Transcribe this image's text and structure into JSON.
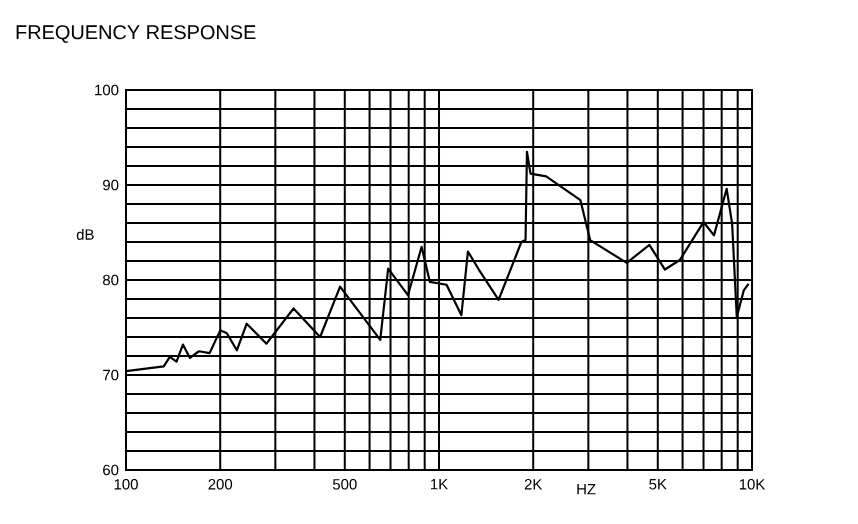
{
  "chart_data": {
    "type": "line",
    "title": "FREQUENCY RESPONSE",
    "xlabel": "HZ",
    "ylabel": "dB",
    "log": "x",
    "grid": true,
    "color": "#000000",
    "marker": "none",
    "line_style": "solid",
    "x": [
      100,
      132,
      138,
      145,
      152,
      160,
      171,
      185,
      200,
      210,
      226,
      243,
      281,
      343,
      417,
      483,
      649,
      688,
      796,
      880,
      935,
      1057,
      1179,
      1237,
      1340,
      1550,
      1833,
      1890,
      1910,
      1960,
      2200,
      2830,
      3040,
      3980,
      4700,
      5270,
      5880,
      7000,
      7560,
      8300,
      8640,
      8940,
      9410,
      9750
    ],
    "values": [
      70.4,
      70.9,
      71.9,
      71.4,
      73.2,
      71.8,
      72.5,
      72.3,
      74.7,
      74.4,
      72.6,
      75.4,
      73.3,
      77.0,
      74.0,
      79.3,
      73.7,
      81.2,
      78.4,
      83.5,
      79.8,
      79.5,
      76.3,
      83.0,
      81.1,
      77.9,
      84.0,
      84.2,
      93.5,
      91.2,
      90.9,
      88.4,
      84.2,
      81.8,
      83.7,
      81.1,
      82.1,
      86.1,
      84.7,
      89.6,
      85.9,
      76.1,
      78.9,
      79.6
    ],
    "xlim": [
      100,
      10000
    ],
    "ylim": [
      60,
      100
    ],
    "xticks": [
      100,
      200,
      {
        "value": 300,
        "label": null
      },
      {
        "value": 400,
        "label": null
      },
      500,
      {
        "value": 600,
        "label": null
      },
      {
        "value": 700,
        "label": null
      },
      {
        "value": 800,
        "label": null
      },
      {
        "value": 900,
        "label": null
      },
      {
        "value": 1000,
        "label": "1K"
      },
      {
        "value": 2000,
        "label": "2K"
      },
      {
        "value": 3000,
        "label": null
      },
      {
        "value": 4000,
        "label": null
      },
      {
        "value": 5000,
        "label": "5K"
      },
      {
        "value": 6000,
        "label": null
      },
      {
        "value": 7000,
        "label": null
      },
      {
        "value": 8000,
        "label": null
      },
      {
        "value": 9000,
        "label": null
      },
      {
        "value": 10000,
        "label": "10K"
      }
    ],
    "yticks": [
      60,
      {
        "value": 62,
        "label": null
      },
      {
        "value": 64,
        "label": null
      },
      {
        "value": 66,
        "label": null
      },
      {
        "value": 68,
        "label": null
      },
      70,
      {
        "value": 72,
        "label": null
      },
      {
        "value": 74,
        "label": null
      },
      {
        "value": 76,
        "label": null
      },
      {
        "value": 78,
        "label": null
      },
      80,
      {
        "value": 82,
        "label": null
      },
      {
        "value": 84,
        "label": null
      },
      {
        "value": 86,
        "label": null
      },
      {
        "value": 88,
        "label": null
      },
      90,
      {
        "value": 92,
        "label": null
      },
      {
        "value": 94,
        "label": null
      },
      {
        "value": 96,
        "label": null
      },
      {
        "value": 98,
        "label": null
      },
      100
    ]
  }
}
